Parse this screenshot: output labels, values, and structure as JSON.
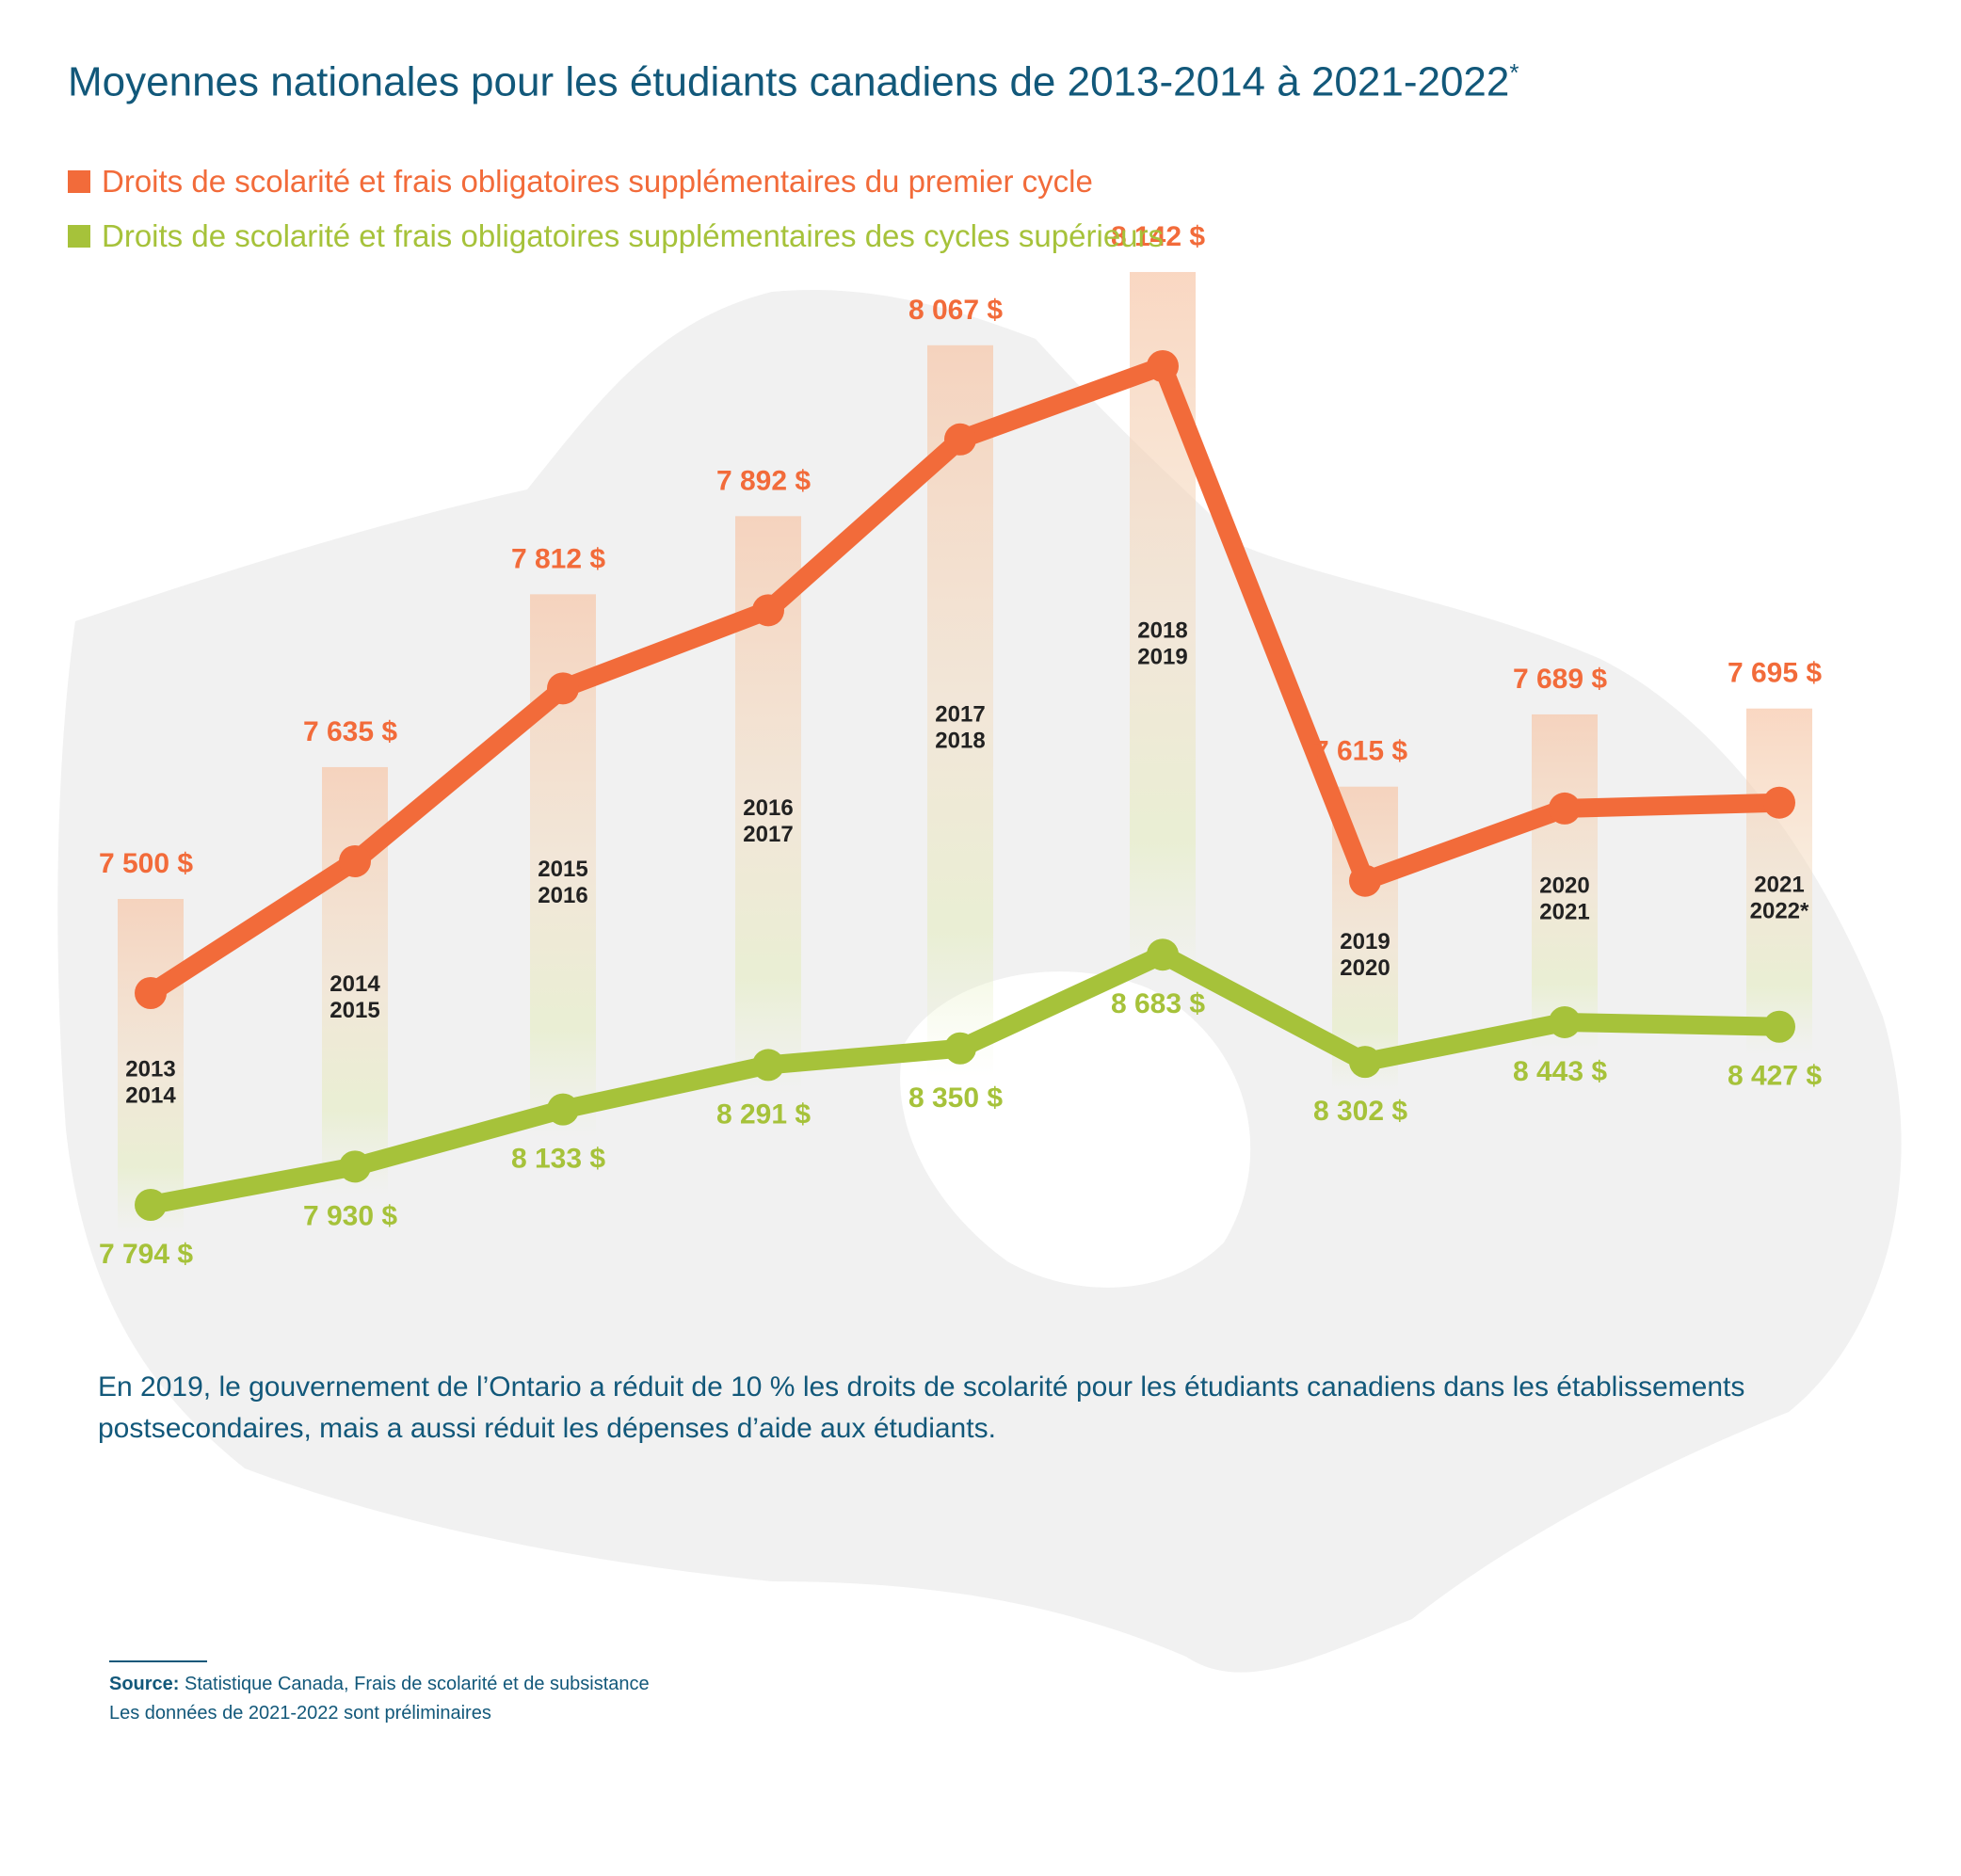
{
  "title": {
    "text": "Moyennes nationales pour les étudiants canadiens de 2013-2014 à 2021-2022",
    "asterisk": "*"
  },
  "legend": [
    {
      "label": "Droits de scolarité et frais obligatoires supplémentaires du premier cycle",
      "color": "#f26b3a"
    },
    {
      "label": "Droits de scolarité et frais obligatoires supplémentaires des cycles supérieurs",
      "color": "#a6c23a"
    }
  ],
  "chart_data": {
    "type": "line",
    "categories": [
      [
        "2013",
        "2014"
      ],
      [
        "2014",
        "2015"
      ],
      [
        "2015",
        "2016"
      ],
      [
        "2016",
        "2017"
      ],
      [
        "2017",
        "2018"
      ],
      [
        "2018",
        "2019"
      ],
      [
        "2019",
        "2020"
      ],
      [
        "2020",
        "2021"
      ],
      [
        "2021",
        "2022*"
      ]
    ],
    "series": [
      {
        "name": "Droits de scolarité et frais obligatoires supplémentaires du premier cycle",
        "color": "#f26b3a",
        "values": [
          7500,
          7635,
          7812,
          7892,
          8067,
          8142,
          7615,
          7689,
          7695
        ],
        "labels": [
          "7 500 $",
          "7 635 $",
          "7 812 $",
          "7 892 $",
          "8 067 $",
          "8 142 $",
          "7 615 $",
          "7 689 $",
          "7 695 $"
        ]
      },
      {
        "name": "Droits de scolarité et frais obligatoires supplémentaires des cycles supérieurs",
        "color": "#a6c23a",
        "values": [
          7794,
          7930,
          8133,
          8291,
          8350,
          8683,
          8302,
          8443,
          8427
        ],
        "labels": [
          "7 794 $",
          "7 930 $",
          "8 133 $",
          "8 291 $",
          "8 350 $",
          "8 683 $",
          "8 302 $",
          "8 443 $",
          "8 427 $"
        ]
      }
    ],
    "xlabel": "",
    "ylabel": "",
    "grid": false,
    "legend_position": "top-left",
    "background": "map of Canada"
  },
  "note": "En 2019, le gouvernement de l’Ontario a réduit de 10 % les droits de scolarité pour les étudiants canadiens dans les établissements postsecondaires, mais a aussi réduit les dépenses d’aide aux étudiants.",
  "footnote": {
    "source_label": "Source:",
    "source_text": " Statistique Canada, Frais de scolarité et de subsistance",
    "preliminary": "Les données de 2021-2022 sont préliminaires"
  }
}
